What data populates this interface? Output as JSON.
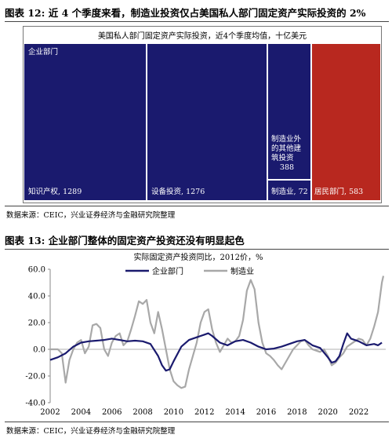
{
  "figures": [
    {
      "title": "图表 12: 近 4 个季度来看，制造业投资仅占美国私人部门固定资产实际投资的 2%",
      "source": "数据来源：CEIC，兴业证券经济与金融研究院整理"
    },
    {
      "title": "图表 13:  企业部门整体的固定资产投资还没有明显起色",
      "source": "数据来源：CEIC，兴业证券经济与金融研究院整理"
    }
  ],
  "colors": {
    "navy": "#1a1a6e",
    "red": "#b8281f",
    "gray": "#a8a8a8",
    "white": "#ffffff"
  },
  "chart_data": [
    {
      "type": "treemap",
      "title": "美国私人部门固定资产实际投资，近4个季度均值，十亿美元",
      "items": [
        {
          "name": "企业部门",
          "value": null,
          "color": "#1a1a6e"
        },
        {
          "name": "知识产权",
          "value": 1289,
          "color": "#1a1a6e"
        },
        {
          "name": "设备投资",
          "value": 1276,
          "color": "#1a1a6e"
        },
        {
          "name": "制造业外的其他建筑投资",
          "value": 388,
          "color": "#1a1a6e"
        },
        {
          "name": "制造业",
          "value": 72,
          "color": "#1a1a6e"
        },
        {
          "name": "居民部门",
          "value": 583,
          "color": "#b8281f"
        }
      ]
    },
    {
      "type": "line",
      "title": "实际固定资产投资同比，2012价，%",
      "xlim": [
        2002,
        2023.75
      ],
      "ylim": [
        -40,
        60
      ],
      "x_ticks": [
        "2002",
        "2004",
        "2006",
        "2008",
        "2010",
        "2012",
        "2014",
        "2016",
        "2018",
        "2020",
        "2022"
      ],
      "y_ticks": [
        "60.0",
        "40.0",
        "20.0",
        "0.0",
        "-20.0",
        "-40.0"
      ],
      "legend_position": "top",
      "series": [
        {
          "name": "企业部门",
          "color": "#1a1a6e",
          "points": [
            [
              2002,
              -8
            ],
            [
              2002.5,
              -6
            ],
            [
              2003,
              -3
            ],
            [
              2003.5,
              2
            ],
            [
              2004,
              5
            ],
            [
              2004.5,
              6
            ],
            [
              2005,
              6.5
            ],
            [
              2005.5,
              7
            ],
            [
              2006,
              8
            ],
            [
              2006.5,
              7
            ],
            [
              2007,
              6
            ],
            [
              2007.5,
              6.5
            ],
            [
              2008,
              6
            ],
            [
              2008.5,
              4
            ],
            [
              2009,
              -5
            ],
            [
              2009.25,
              -12
            ],
            [
              2009.5,
              -16
            ],
            [
              2009.75,
              -15
            ],
            [
              2010,
              -9
            ],
            [
              2010.5,
              2
            ],
            [
              2011,
              7
            ],
            [
              2011.5,
              9
            ],
            [
              2012,
              11
            ],
            [
              2012.25,
              12
            ],
            [
              2012.5,
              10
            ],
            [
              2013,
              5
            ],
            [
              2013.5,
              3
            ],
            [
              2014,
              6
            ],
            [
              2014.5,
              7
            ],
            [
              2015,
              5
            ],
            [
              2015.5,
              2
            ],
            [
              2016,
              0
            ],
            [
              2016.5,
              0.5
            ],
            [
              2017,
              2
            ],
            [
              2017.5,
              4
            ],
            [
              2018,
              6
            ],
            [
              2018.5,
              7
            ],
            [
              2019,
              3
            ],
            [
              2019.5,
              1
            ],
            [
              2020,
              -6
            ],
            [
              2020.25,
              -10
            ],
            [
              2020.5,
              -9
            ],
            [
              2020.75,
              -5
            ],
            [
              2021,
              4
            ],
            [
              2021.25,
              12
            ],
            [
              2021.5,
              8
            ],
            [
              2022,
              6
            ],
            [
              2022.5,
              3
            ],
            [
              2023,
              4
            ],
            [
              2023.25,
              3
            ],
            [
              2023.5,
              5
            ]
          ]
        },
        {
          "name": "制造业",
          "color": "#a8a8a8",
          "points": [
            [
              2002,
              0
            ],
            [
              2002.5,
              0
            ],
            [
              2002.75,
              -3
            ],
            [
              2003,
              -25
            ],
            [
              2003.25,
              -8
            ],
            [
              2003.5,
              0
            ],
            [
              2003.75,
              5
            ],
            [
              2004,
              7
            ],
            [
              2004.25,
              -3
            ],
            [
              2004.5,
              2
            ],
            [
              2004.75,
              18
            ],
            [
              2005,
              19
            ],
            [
              2005.25,
              16
            ],
            [
              2005.5,
              0
            ],
            [
              2005.75,
              -5
            ],
            [
              2006,
              5
            ],
            [
              2006.25,
              10
            ],
            [
              2006.5,
              12
            ],
            [
              2006.75,
              3
            ],
            [
              2007,
              6
            ],
            [
              2007.25,
              15
            ],
            [
              2007.5,
              25
            ],
            [
              2007.75,
              36
            ],
            [
              2008,
              34
            ],
            [
              2008.25,
              37
            ],
            [
              2008.5,
              20
            ],
            [
              2008.75,
              12
            ],
            [
              2009,
              28
            ],
            [
              2009.25,
              15
            ],
            [
              2009.5,
              0
            ],
            [
              2009.75,
              -15
            ],
            [
              2010,
              -24
            ],
            [
              2010.25,
              -27
            ],
            [
              2010.5,
              -29
            ],
            [
              2010.75,
              -28
            ],
            [
              2011,
              -15
            ],
            [
              2011.25,
              -5
            ],
            [
              2011.5,
              5
            ],
            [
              2011.75,
              20
            ],
            [
              2012,
              28
            ],
            [
              2012.25,
              30
            ],
            [
              2012.5,
              15
            ],
            [
              2012.75,
              5
            ],
            [
              2013,
              -2
            ],
            [
              2013.25,
              3
            ],
            [
              2013.5,
              8
            ],
            [
              2013.75,
              5
            ],
            [
              2014,
              6
            ],
            [
              2014.25,
              10
            ],
            [
              2014.5,
              22
            ],
            [
              2014.75,
              44
            ],
            [
              2015,
              52
            ],
            [
              2015.25,
              45
            ],
            [
              2015.5,
              20
            ],
            [
              2015.75,
              5
            ],
            [
              2016,
              -3
            ],
            [
              2016.25,
              -5
            ],
            [
              2016.5,
              -8
            ],
            [
              2016.75,
              -12
            ],
            [
              2017,
              -15
            ],
            [
              2017.25,
              -10
            ],
            [
              2017.5,
              -5
            ],
            [
              2017.75,
              0
            ],
            [
              2018,
              3
            ],
            [
              2018.25,
              6
            ],
            [
              2018.5,
              7
            ],
            [
              2018.75,
              3
            ],
            [
              2019,
              0
            ],
            [
              2019.25,
              -1
            ],
            [
              2019.5,
              -2
            ],
            [
              2019.75,
              0
            ],
            [
              2020,
              -5
            ],
            [
              2020.25,
              -12
            ],
            [
              2020.5,
              -10
            ],
            [
              2020.75,
              -6
            ],
            [
              2021,
              -3
            ],
            [
              2021.25,
              2
            ],
            [
              2021.5,
              4
            ],
            [
              2021.75,
              6
            ],
            [
              2022,
              8
            ],
            [
              2022.25,
              7
            ],
            [
              2022.5,
              3
            ],
            [
              2022.75,
              8
            ],
            [
              2023,
              17
            ],
            [
              2023.25,
              28
            ],
            [
              2023.5,
              50
            ],
            [
              2023.6,
              55
            ]
          ]
        }
      ]
    }
  ]
}
